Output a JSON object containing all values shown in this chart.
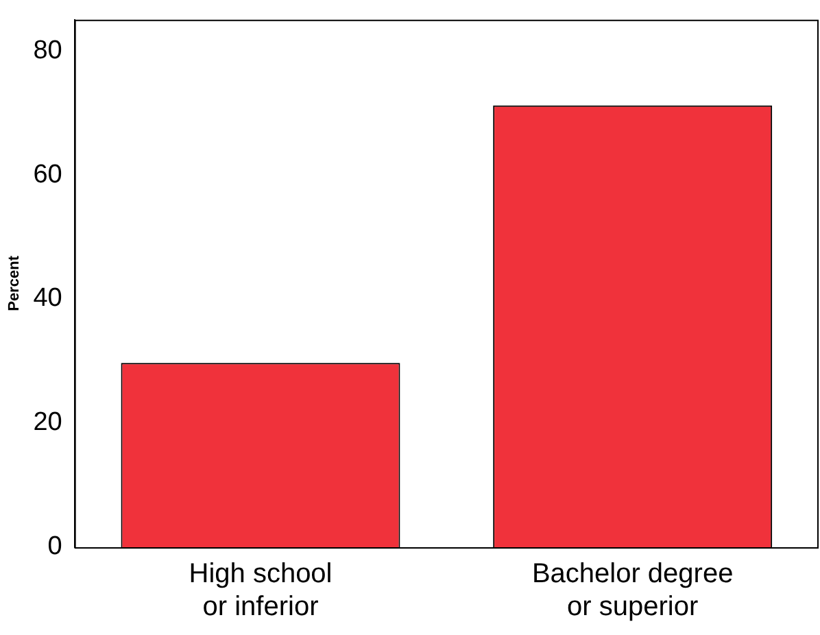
{
  "chart_data": {
    "type": "bar",
    "categories": [
      "High school or inferior",
      "Bachelor degree or superior"
    ],
    "values": [
      29.7,
      71.2
    ],
    "color": "#f0323b",
    "ylabel": "Percent",
    "ylim": [
      0,
      85
    ],
    "yticks": [
      0,
      20,
      40,
      60,
      80
    ],
    "grid": false,
    "legend": false
  }
}
